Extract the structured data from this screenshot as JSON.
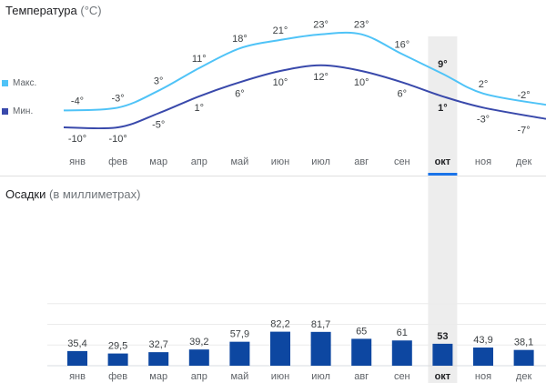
{
  "temperature": {
    "title": "Температура",
    "unit": "(°C)"
  },
  "precipitation": {
    "title": "Осадки",
    "unit": "(в миллиметрах)"
  },
  "legend": {
    "max": "Макс.",
    "min": "Мин."
  },
  "colors": {
    "max_line": "#4fc3f7",
    "min_line": "#3949ab",
    "bar": "#0d47a1",
    "selected_band": "#ededed",
    "selected_underline": "#1a73e8"
  },
  "selected_month": "окт",
  "chart_data": [
    {
      "type": "line",
      "categories": [
        "янв",
        "фев",
        "мар",
        "апр",
        "май",
        "июн",
        "июл",
        "авг",
        "сен",
        "окт",
        "ноя",
        "дек"
      ],
      "series": [
        {
          "name": "Макс.",
          "values": [
            -4,
            -3,
            3,
            11,
            18,
            21,
            23,
            23,
            16,
            9,
            2,
            -2
          ],
          "labels": [
            "-4°",
            "-3°",
            "3°",
            "11°",
            "18°",
            "21°",
            "23°",
            "23°",
            "16°",
            "9°",
            "2°",
            "-2°"
          ]
        },
        {
          "name": "Мин.",
          "values": [
            -10,
            -10,
            -5,
            1,
            6,
            10,
            12,
            10,
            6,
            1,
            -3,
            -7
          ],
          "labels": [
            "-10°",
            "-10°",
            "-5°",
            "1°",
            "6°",
            "10°",
            "12°",
            "10°",
            "6°",
            "1°",
            "-3°",
            "-7°"
          ]
        }
      ],
      "title": "Температура",
      "ylabel": "(°C)"
    },
    {
      "type": "bar",
      "categories": [
        "янв",
        "фев",
        "мар",
        "апр",
        "май",
        "июн",
        "июл",
        "авг",
        "сен",
        "окт",
        "ноя",
        "дек"
      ],
      "values": [
        35.4,
        29.5,
        32.7,
        39.2,
        57.9,
        82.2,
        81.7,
        65,
        61,
        53,
        43.9,
        38.1
      ],
      "labels": [
        "35,4",
        "29,5",
        "32,7",
        "39,2",
        "57,9",
        "82,2",
        "81,7",
        "65",
        "61",
        "53",
        "43,9",
        "38,1"
      ],
      "title": "Осадки",
      "ylabel": "(в миллиметрах)",
      "ylim": [
        0,
        200
      ],
      "grid": true
    }
  ]
}
